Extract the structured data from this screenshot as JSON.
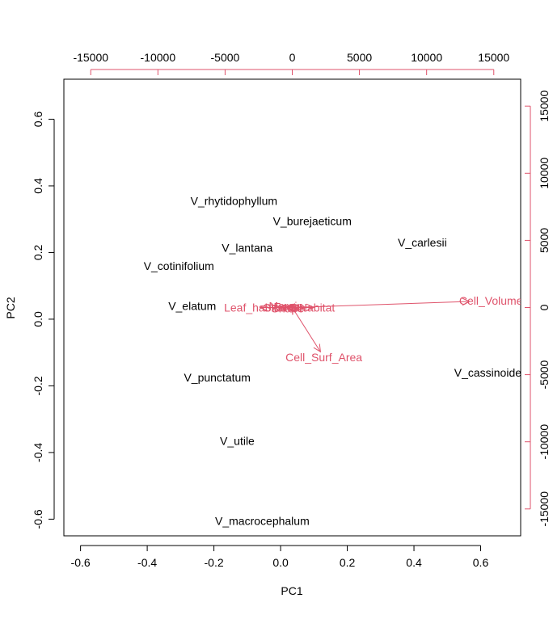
{
  "chart_data": {
    "type": "scatter",
    "title": "",
    "xlabel": "PC1",
    "ylabel": "PC2",
    "xlim": [
      -0.65,
      0.72
    ],
    "ylim": [
      -0.65,
      0.72
    ],
    "xticks": [
      -0.6,
      -0.4,
      -0.2,
      0.0,
      0.2,
      0.4,
      0.6
    ],
    "xtick_labels": [
      "-0.6",
      "-0.4",
      "-0.2",
      "0.0",
      "0.2",
      "0.4",
      "0.6"
    ],
    "yticks": [
      -0.6,
      -0.4,
      -0.2,
      0.0,
      0.2,
      0.4,
      0.6
    ],
    "ytick_labels": [
      "-0.6",
      "-0.4",
      "-0.2",
      "0.0",
      "0.2",
      "0.4",
      "0.6"
    ],
    "secondary_axes": {
      "color": "#DF536B",
      "lim": [
        -17000,
        17000
      ],
      "top_ticks": [
        -15000,
        -10000,
        -5000,
        0,
        5000,
        10000,
        15000
      ],
      "top_tick_labels": [
        "-15000",
        "-10000",
        "-5000",
        "0",
        "5000",
        "10000",
        "15000"
      ],
      "right_ticks": [
        -15000,
        -10000,
        -5000,
        0,
        5000,
        10000,
        15000
      ],
      "right_tick_labels": [
        "-15000",
        "-10000",
        "-5000",
        "0",
        "5000",
        "10000",
        "15000"
      ]
    },
    "observations": [
      {
        "label": "V_rhytidophyllum",
        "x": -0.14,
        "y": 0.355
      },
      {
        "label": "V_burejaeticum",
        "x": 0.095,
        "y": 0.295
      },
      {
        "label": "V_lantana",
        "x": -0.1,
        "y": 0.215
      },
      {
        "label": "V_carlesii",
        "x": 0.425,
        "y": 0.23
      },
      {
        "label": "V_cotinifolium",
        "x": -0.305,
        "y": 0.16
      },
      {
        "label": "V_elatum",
        "x": -0.265,
        "y": 0.04
      },
      {
        "label": "V_punctatum",
        "x": -0.19,
        "y": -0.175
      },
      {
        "label": "V_cassinoides",
        "x": 0.63,
        "y": -0.16
      },
      {
        "label": "V_utile",
        "x": -0.13,
        "y": -0.365
      },
      {
        "label": "V_macrocephalum",
        "x": -0.055,
        "y": -0.605
      }
    ],
    "loadings": [
      {
        "label": "Cell_Volume",
        "x": 13200,
        "y": 450
      },
      {
        "label": "Cell_Surf_Area",
        "x": 2100,
        "y": -3300
      }
    ],
    "overlapping_labels": [
      {
        "label": "Leaf_habitat",
        "x": -2400,
        "y": 0
      },
      {
        "label": "Habitat",
        "x": 1600,
        "y": 0
      },
      {
        "label": "Stomata",
        "x": -500,
        "y": 0
      },
      {
        "label": "Margin",
        "x": -400,
        "y": 100
      },
      {
        "label": "Shape",
        "x": -300,
        "y": -50
      },
      {
        "label": "Form",
        "x": -350,
        "y": 50
      }
    ],
    "arrow_color": "#DF536B"
  }
}
